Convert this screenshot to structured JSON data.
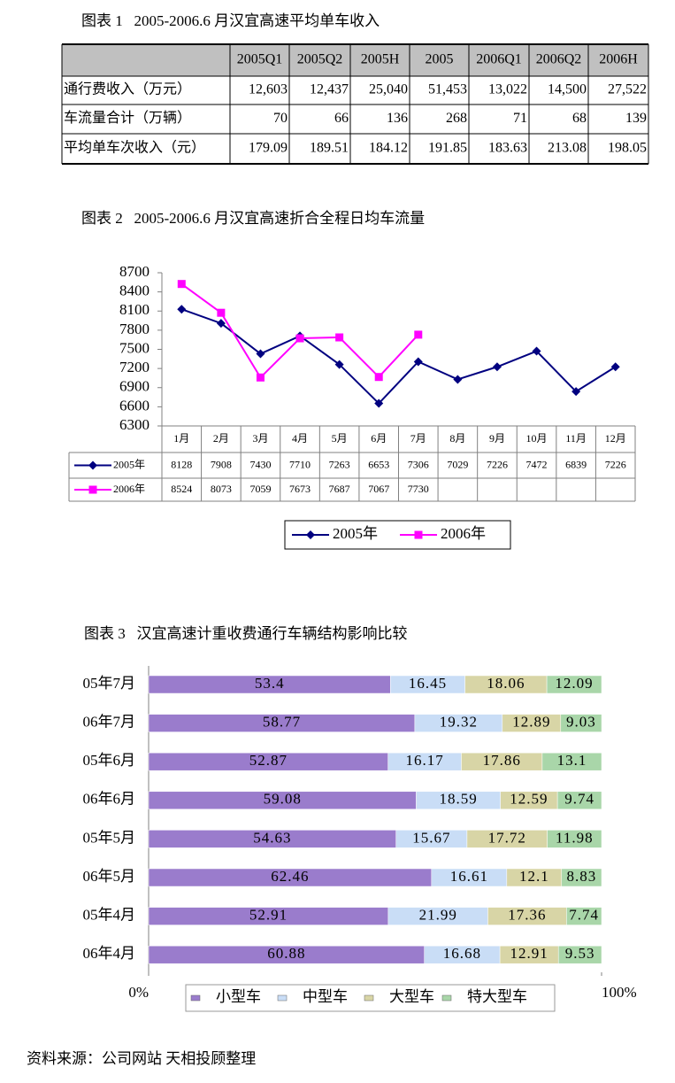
{
  "table1": {
    "title": "图表 1   2005-2006.6 月汉宜高速平均单车收入",
    "columns": [
      "2005Q1",
      "2005Q2",
      "2005H",
      "2005",
      "2006Q1",
      "2006Q2",
      "2006H"
    ],
    "rows": [
      {
        "label": "通行费收入（万元）",
        "cells": [
          "12,603",
          "12,437",
          "25,040",
          "51,453",
          "13,022",
          "14,500",
          "27,522"
        ]
      },
      {
        "label": "车流量合计（万辆）",
        "cells": [
          "70",
          "66",
          "136",
          "268",
          "71",
          "68",
          "139"
        ]
      },
      {
        "label": "平均单车次收入（元）",
        "cells": [
          "179.09",
          "189.51",
          "184.12",
          "191.85",
          "183.63",
          "213.08",
          "198.05"
        ]
      }
    ]
  },
  "chart_data": [
    {
      "type": "line",
      "title": "图表 2   2005-2006.6 月汉宜高速折合全程日均车流量",
      "categories": [
        "1月",
        "2月",
        "3月",
        "4月",
        "5月",
        "6月",
        "7月",
        "8月",
        "9月",
        "10月",
        "11月",
        "12月"
      ],
      "series": [
        {
          "name": "2005年",
          "color": "#000080",
          "marker": "diamond",
          "values": [
            8128,
            7908,
            7430,
            7710,
            7263,
            6653,
            7306,
            7029,
            7226,
            7472,
            6839,
            7226
          ]
        },
        {
          "name": "2006年",
          "color": "#ff00ff",
          "marker": "square",
          "values": [
            8524,
            8073,
            7059,
            7673,
            7687,
            7067,
            7730,
            null,
            null,
            null,
            null,
            null
          ]
        }
      ],
      "ylim": [
        6300,
        8700
      ],
      "yticks": [
        6300,
        6600,
        6900,
        7200,
        7500,
        7800,
        8100,
        8400,
        8700
      ],
      "grid": false,
      "legend": "bottom",
      "data_table": true
    },
    {
      "type": "bar",
      "orientation": "horizontal",
      "stacked": true,
      "title": "图表 3   汉宜高速计重收费通行车辆结构影响比较",
      "categories": [
        "05年7月",
        "06年7月",
        "05年6月",
        "06年6月",
        "05年5月",
        "06年5月",
        "05年4月",
        "06年4月"
      ],
      "series": [
        {
          "name": "小型车",
          "color": "#9a7ccc",
          "values": [
            53.4,
            58.77,
            52.87,
            59.08,
            54.63,
            62.46,
            52.91,
            60.88
          ]
        },
        {
          "name": "中型车",
          "color": "#c9ddf6",
          "values": [
            16.45,
            19.32,
            16.17,
            18.59,
            15.67,
            16.61,
            21.99,
            16.68
          ]
        },
        {
          "name": "大型车",
          "color": "#d8d5a6",
          "values": [
            18.06,
            12.89,
            17.86,
            12.59,
            17.72,
            12.1,
            17.36,
            12.91
          ]
        },
        {
          "name": "特大型车",
          "color": "#a9d6a9",
          "values": [
            12.09,
            9.03,
            13.1,
            9.74,
            11.98,
            8.83,
            7.74,
            9.53
          ]
        }
      ],
      "xlim": [
        0,
        100
      ],
      "xticks": [
        {
          "value": 0,
          "label": "0%"
        },
        {
          "value": 100,
          "label": "100%"
        }
      ],
      "legend": "bottom",
      "value_labels": true
    }
  ],
  "source": "资料来源：公司网站 天相投顾整理"
}
